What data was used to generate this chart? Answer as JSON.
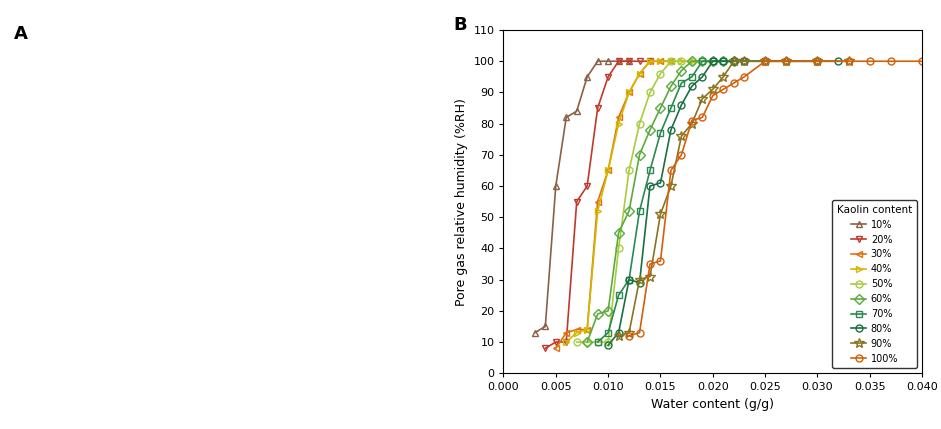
{
  "title_right": "B",
  "title_left": "A",
  "xlabel": "Water content (g/g)",
  "ylabel": "Pore gas relative humidity (%RH)",
  "xlim": [
    0.0,
    0.04
  ],
  "ylim": [
    0,
    110
  ],
  "xticks": [
    0.0,
    0.005,
    0.01,
    0.015,
    0.02,
    0.025,
    0.03,
    0.035,
    0.04
  ],
  "yticks": [
    0,
    10,
    20,
    30,
    40,
    50,
    60,
    70,
    80,
    90,
    100,
    110
  ],
  "colors": {
    "10%": "#8B6045",
    "20%": "#C0392B",
    "30%": "#E07010",
    "40%": "#D4B800",
    "50%": "#A8CC40",
    "60%": "#5AAB3C",
    "70%": "#2A8A50",
    "80%": "#1A7040",
    "90%": "#8B7320",
    "100%": "#D4600A"
  },
  "markers": {
    "10%": "^",
    "20%": "v",
    "30%": "<",
    "40%": ">",
    "50%": "o",
    "60%": "D",
    "70%": "s",
    "80%": "o",
    "90%": "*",
    "100%": "o"
  },
  "series": [
    {
      "label": "10%",
      "x": [
        0.003,
        0.004,
        0.005,
        0.006,
        0.007,
        0.008,
        0.009,
        0.01,
        0.011,
        0.012
      ],
      "y": [
        13,
        15,
        60,
        82,
        84,
        95,
        100,
        100,
        100,
        100
      ]
    },
    {
      "label": "20%",
      "x": [
        0.004,
        0.005,
        0.006,
        0.007,
        0.008,
        0.009,
        0.01,
        0.011,
        0.012,
        0.013,
        0.014
      ],
      "y": [
        8,
        10,
        10,
        55,
        60,
        85,
        95,
        100,
        100,
        100,
        100
      ]
    },
    {
      "label": "30%",
      "x": [
        0.005,
        0.006,
        0.007,
        0.008,
        0.009,
        0.01,
        0.011,
        0.012,
        0.013,
        0.014,
        0.015,
        0.016
      ],
      "y": [
        8,
        13,
        14,
        14,
        55,
        65,
        82,
        90,
        96,
        100,
        100,
        100
      ]
    },
    {
      "label": "40%",
      "x": [
        0.006,
        0.007,
        0.008,
        0.009,
        0.01,
        0.011,
        0.012,
        0.013,
        0.014,
        0.015,
        0.016,
        0.017,
        0.018
      ],
      "y": [
        10,
        13,
        14,
        52,
        65,
        80,
        90,
        96,
        100,
        100,
        100,
        100,
        100
      ]
    },
    {
      "label": "50%",
      "x": [
        0.007,
        0.008,
        0.009,
        0.01,
        0.011,
        0.012,
        0.013,
        0.014,
        0.015,
        0.016,
        0.017,
        0.018,
        0.019,
        0.02
      ],
      "y": [
        10,
        10,
        10,
        10,
        40,
        65,
        80,
        90,
        96,
        100,
        100,
        100,
        100,
        100
      ]
    },
    {
      "label": "60%",
      "x": [
        0.008,
        0.009,
        0.01,
        0.011,
        0.012,
        0.013,
        0.014,
        0.015,
        0.016,
        0.017,
        0.018,
        0.019,
        0.02,
        0.021,
        0.022
      ],
      "y": [
        10,
        19,
        20,
        45,
        52,
        70,
        78,
        85,
        92,
        97,
        100,
        100,
        100,
        100,
        100
      ]
    },
    {
      "label": "70%",
      "x": [
        0.009,
        0.01,
        0.011,
        0.012,
        0.013,
        0.014,
        0.015,
        0.016,
        0.017,
        0.018,
        0.019,
        0.02,
        0.021,
        0.022,
        0.023,
        0.025,
        0.03
      ],
      "y": [
        10,
        13,
        25,
        30,
        52,
        65,
        77,
        85,
        93,
        95,
        100,
        100,
        100,
        100,
        100,
        100,
        100
      ]
    },
    {
      "label": "80%",
      "x": [
        0.01,
        0.011,
        0.012,
        0.013,
        0.014,
        0.015,
        0.016,
        0.017,
        0.018,
        0.019,
        0.02,
        0.021,
        0.022,
        0.023,
        0.025,
        0.027,
        0.03,
        0.032
      ],
      "y": [
        9,
        13,
        30,
        29,
        60,
        61,
        78,
        86,
        92,
        95,
        100,
        100,
        100,
        100,
        100,
        100,
        100,
        100
      ]
    },
    {
      "label": "90%",
      "x": [
        0.011,
        0.012,
        0.013,
        0.014,
        0.015,
        0.016,
        0.017,
        0.018,
        0.019,
        0.02,
        0.021,
        0.022,
        0.023,
        0.025,
        0.027,
        0.03,
        0.033
      ],
      "y": [
        12,
        13,
        30,
        31,
        51,
        60,
        76,
        80,
        88,
        91,
        95,
        100,
        100,
        100,
        100,
        100,
        100
      ]
    },
    {
      "label": "100%",
      "x": [
        0.012,
        0.013,
        0.014,
        0.015,
        0.016,
        0.017,
        0.018,
        0.019,
        0.02,
        0.021,
        0.022,
        0.023,
        0.025,
        0.027,
        0.03,
        0.033,
        0.035,
        0.037,
        0.04
      ],
      "y": [
        12,
        13,
        35,
        36,
        65,
        70,
        81,
        82,
        89,
        91,
        93,
        95,
        100,
        100,
        100,
        100,
        100,
        100,
        100
      ]
    }
  ]
}
